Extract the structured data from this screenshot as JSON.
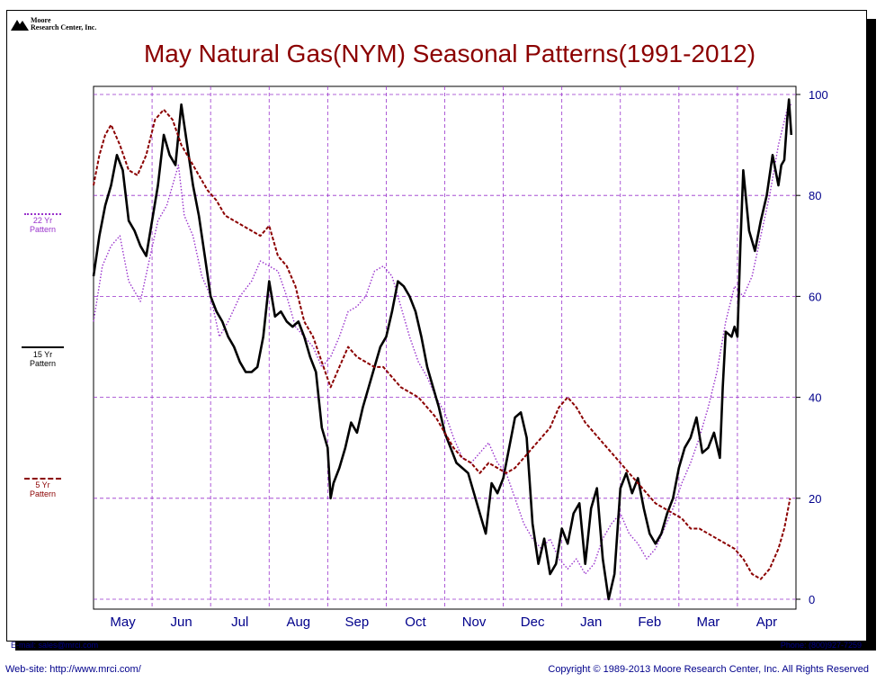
{
  "logo": {
    "line1": "Moore",
    "line2": "Research Center, Inc."
  },
  "title": "May Natural Gas(NYM) Seasonal Patterns(1991-2012)",
  "legend": {
    "p22": {
      "years": "22 Yr",
      "word": "Pattern",
      "color": "#9932cc"
    },
    "p15": {
      "years": "15 Yr",
      "word": "Pattern",
      "color": "#000000"
    },
    "p5": {
      "years": "5 Yr",
      "word": "Pattern",
      "color": "#8b0000"
    }
  },
  "footer": {
    "email": "E-mail: sales@mrci.com",
    "phone": "Phone: (800)927-7259",
    "website": "Web-site: http://www.mrci.com/",
    "copyright": "Copyright © 1989-2013 Moore Research Center, Inc. All Rights Reserved"
  },
  "chart_data": {
    "type": "line",
    "title": "May Natural Gas(NYM) Seasonal Patterns(1991-2012)",
    "categories": [
      "May",
      "Jun",
      "Jul",
      "Aug",
      "Sep",
      "Oct",
      "Nov",
      "Dec",
      "Jan",
      "Feb",
      "Mar",
      "Apr"
    ],
    "ylim": [
      0,
      100
    ],
    "yticks": [
      "0",
      "20",
      "40",
      "60",
      "80",
      "100"
    ],
    "grid": true,
    "colors": {
      "axis_text": "#00008b",
      "grid": "#9932cc"
    },
    "series": [
      {
        "name": "22 Yr Pattern",
        "color": "#9932cc",
        "style": "dotted",
        "values": [
          [
            0.0,
            55
          ],
          [
            0.15,
            66
          ],
          [
            0.3,
            70
          ],
          [
            0.45,
            72
          ],
          [
            0.6,
            63
          ],
          [
            0.8,
            59
          ],
          [
            0.95,
            67
          ],
          [
            1.1,
            75
          ],
          [
            1.25,
            78
          ],
          [
            1.45,
            86
          ],
          [
            1.55,
            76
          ],
          [
            1.7,
            72
          ],
          [
            1.85,
            64
          ],
          [
            2.0,
            60
          ],
          [
            2.15,
            52
          ],
          [
            2.3,
            55
          ],
          [
            2.5,
            60
          ],
          [
            2.7,
            63
          ],
          [
            2.85,
            67
          ],
          [
            3.0,
            66
          ],
          [
            3.15,
            65
          ],
          [
            3.3,
            60
          ],
          [
            3.45,
            54
          ],
          [
            3.6,
            52
          ],
          [
            3.75,
            50
          ],
          [
            3.9,
            46
          ],
          [
            4.05,
            48
          ],
          [
            4.2,
            52
          ],
          [
            4.35,
            57
          ],
          [
            4.5,
            58
          ],
          [
            4.65,
            60
          ],
          [
            4.8,
            65
          ],
          [
            4.95,
            66
          ],
          [
            5.1,
            64
          ],
          [
            5.25,
            58
          ],
          [
            5.4,
            52
          ],
          [
            5.55,
            47
          ],
          [
            5.7,
            44
          ],
          [
            5.85,
            40
          ],
          [
            6.0,
            37
          ],
          [
            6.15,
            32
          ],
          [
            6.3,
            28
          ],
          [
            6.45,
            27
          ],
          [
            6.6,
            29
          ],
          [
            6.75,
            31
          ],
          [
            6.9,
            27
          ],
          [
            7.05,
            25
          ],
          [
            7.2,
            20
          ],
          [
            7.35,
            15
          ],
          [
            7.5,
            12
          ],
          [
            7.65,
            10
          ],
          [
            7.8,
            12
          ],
          [
            7.95,
            8
          ],
          [
            8.1,
            6
          ],
          [
            8.25,
            8
          ],
          [
            8.4,
            5
          ],
          [
            8.55,
            7
          ],
          [
            8.7,
            12
          ],
          [
            8.85,
            15
          ],
          [
            9.0,
            17
          ],
          [
            9.15,
            13
          ],
          [
            9.3,
            11
          ],
          [
            9.45,
            8
          ],
          [
            9.6,
            10
          ],
          [
            9.75,
            14
          ],
          [
            9.9,
            18
          ],
          [
            10.05,
            23
          ],
          [
            10.2,
            27
          ],
          [
            10.35,
            32
          ],
          [
            10.5,
            38
          ],
          [
            10.65,
            45
          ],
          [
            10.8,
            55
          ],
          [
            10.95,
            62
          ],
          [
            11.1,
            60
          ],
          [
            11.25,
            64
          ],
          [
            11.4,
            72
          ],
          [
            11.55,
            80
          ],
          [
            11.7,
            90
          ],
          [
            11.85,
            97
          ],
          [
            11.92,
            98
          ]
        ]
      },
      {
        "name": "15 Yr Pattern",
        "color": "#000000",
        "style": "solid",
        "values": [
          [
            0.0,
            64
          ],
          [
            0.1,
            72
          ],
          [
            0.2,
            78
          ],
          [
            0.3,
            82
          ],
          [
            0.4,
            88
          ],
          [
            0.5,
            85
          ],
          [
            0.6,
            75
          ],
          [
            0.7,
            73
          ],
          [
            0.8,
            70
          ],
          [
            0.9,
            68
          ],
          [
            1.0,
            75
          ],
          [
            1.1,
            82
          ],
          [
            1.2,
            92
          ],
          [
            1.3,
            88
          ],
          [
            1.4,
            86
          ],
          [
            1.5,
            98
          ],
          [
            1.6,
            90
          ],
          [
            1.7,
            82
          ],
          [
            1.8,
            76
          ],
          [
            1.9,
            68
          ],
          [
            2.0,
            60
          ],
          [
            2.1,
            57
          ],
          [
            2.2,
            55
          ],
          [
            2.3,
            52
          ],
          [
            2.4,
            50
          ],
          [
            2.5,
            47
          ],
          [
            2.6,
            45
          ],
          [
            2.7,
            45
          ],
          [
            2.8,
            46
          ],
          [
            2.9,
            52
          ],
          [
            3.0,
            63
          ],
          [
            3.1,
            56
          ],
          [
            3.2,
            57
          ],
          [
            3.3,
            55
          ],
          [
            3.4,
            54
          ],
          [
            3.5,
            55
          ],
          [
            3.6,
            52
          ],
          [
            3.7,
            48
          ],
          [
            3.8,
            45
          ],
          [
            3.9,
            34
          ],
          [
            4.0,
            30
          ],
          [
            4.05,
            20
          ],
          [
            4.1,
            23
          ],
          [
            4.2,
            26
          ],
          [
            4.3,
            30
          ],
          [
            4.4,
            35
          ],
          [
            4.5,
            33
          ],
          [
            4.6,
            38
          ],
          [
            4.7,
            42
          ],
          [
            4.8,
            46
          ],
          [
            4.9,
            50
          ],
          [
            5.0,
            52
          ],
          [
            5.1,
            57
          ],
          [
            5.2,
            63
          ],
          [
            5.3,
            62
          ],
          [
            5.4,
            60
          ],
          [
            5.5,
            57
          ],
          [
            5.6,
            52
          ],
          [
            5.7,
            46
          ],
          [
            5.8,
            42
          ],
          [
            5.9,
            38
          ],
          [
            6.0,
            33
          ],
          [
            6.1,
            30
          ],
          [
            6.2,
            27
          ],
          [
            6.3,
            26
          ],
          [
            6.4,
            25
          ],
          [
            6.5,
            21
          ],
          [
            6.6,
            17
          ],
          [
            6.7,
            13
          ],
          [
            6.8,
            23
          ],
          [
            6.9,
            21
          ],
          [
            7.0,
            24
          ],
          [
            7.1,
            30
          ],
          [
            7.2,
            36
          ],
          [
            7.3,
            37
          ],
          [
            7.4,
            32
          ],
          [
            7.5,
            15
          ],
          [
            7.6,
            7
          ],
          [
            7.7,
            12
          ],
          [
            7.8,
            5
          ],
          [
            7.9,
            7
          ],
          [
            8.0,
            14
          ],
          [
            8.1,
            11
          ],
          [
            8.2,
            17
          ],
          [
            8.3,
            19
          ],
          [
            8.4,
            7
          ],
          [
            8.5,
            18
          ],
          [
            8.6,
            22
          ],
          [
            8.7,
            8
          ],
          [
            8.8,
            0
          ],
          [
            8.9,
            5
          ],
          [
            9.0,
            22
          ],
          [
            9.1,
            25
          ],
          [
            9.2,
            21
          ],
          [
            9.3,
            24
          ],
          [
            9.4,
            18
          ],
          [
            9.5,
            13
          ],
          [
            9.6,
            11
          ],
          [
            9.7,
            13
          ],
          [
            9.8,
            17
          ],
          [
            9.9,
            20
          ],
          [
            10.0,
            26
          ],
          [
            10.1,
            30
          ],
          [
            10.2,
            32
          ],
          [
            10.3,
            36
          ],
          [
            10.4,
            29
          ],
          [
            10.5,
            30
          ],
          [
            10.6,
            33
          ],
          [
            10.7,
            28
          ],
          [
            10.75,
            42
          ],
          [
            10.8,
            53
          ],
          [
            10.9,
            52
          ],
          [
            10.95,
            54
          ],
          [
            11.0,
            52
          ],
          [
            11.05,
            70
          ],
          [
            11.1,
            85
          ],
          [
            11.2,
            73
          ],
          [
            11.3,
            69
          ],
          [
            11.4,
            75
          ],
          [
            11.5,
            80
          ],
          [
            11.6,
            88
          ],
          [
            11.7,
            82
          ],
          [
            11.75,
            86
          ],
          [
            11.8,
            87
          ],
          [
            11.85,
            95
          ],
          [
            11.88,
            99
          ],
          [
            11.92,
            92
          ]
        ]
      },
      {
        "name": "5 Yr Pattern",
        "color": "#8b0000",
        "style": "dashed",
        "values": [
          [
            0.0,
            82
          ],
          [
            0.1,
            88
          ],
          [
            0.2,
            92
          ],
          [
            0.3,
            94
          ],
          [
            0.45,
            90
          ],
          [
            0.6,
            85
          ],
          [
            0.75,
            84
          ],
          [
            0.9,
            88
          ],
          [
            1.05,
            95
          ],
          [
            1.2,
            97
          ],
          [
            1.35,
            95
          ],
          [
            1.5,
            90
          ],
          [
            1.65,
            87
          ],
          [
            1.8,
            84
          ],
          [
            1.95,
            81
          ],
          [
            2.1,
            79
          ],
          [
            2.25,
            76
          ],
          [
            2.4,
            75
          ],
          [
            2.55,
            74
          ],
          [
            2.7,
            73
          ],
          [
            2.85,
            72
          ],
          [
            3.0,
            74
          ],
          [
            3.15,
            68
          ],
          [
            3.3,
            66
          ],
          [
            3.45,
            62
          ],
          [
            3.6,
            55
          ],
          [
            3.75,
            52
          ],
          [
            3.9,
            47
          ],
          [
            4.05,
            42
          ],
          [
            4.2,
            46
          ],
          [
            4.35,
            50
          ],
          [
            4.5,
            48
          ],
          [
            4.65,
            47
          ],
          [
            4.8,
            46
          ],
          [
            4.95,
            46
          ],
          [
            5.1,
            44
          ],
          [
            5.25,
            42
          ],
          [
            5.4,
            41
          ],
          [
            5.55,
            40
          ],
          [
            5.7,
            38
          ],
          [
            5.85,
            36
          ],
          [
            6.0,
            33
          ],
          [
            6.15,
            30
          ],
          [
            6.3,
            28
          ],
          [
            6.45,
            27
          ],
          [
            6.6,
            25
          ],
          [
            6.75,
            27
          ],
          [
            6.9,
            26
          ],
          [
            7.05,
            25
          ],
          [
            7.2,
            26
          ],
          [
            7.35,
            28
          ],
          [
            7.5,
            30
          ],
          [
            7.65,
            32
          ],
          [
            7.8,
            34
          ],
          [
            7.95,
            38
          ],
          [
            8.1,
            40
          ],
          [
            8.25,
            38
          ],
          [
            8.4,
            35
          ],
          [
            8.55,
            33
          ],
          [
            8.7,
            31
          ],
          [
            8.85,
            29
          ],
          [
            9.0,
            27
          ],
          [
            9.15,
            25
          ],
          [
            9.3,
            23
          ],
          [
            9.45,
            21
          ],
          [
            9.6,
            19
          ],
          [
            9.75,
            18
          ],
          [
            9.9,
            17
          ],
          [
            10.05,
            16
          ],
          [
            10.2,
            14
          ],
          [
            10.35,
            14
          ],
          [
            10.5,
            13
          ],
          [
            10.65,
            12
          ],
          [
            10.8,
            11
          ],
          [
            10.95,
            10
          ],
          [
            11.1,
            8
          ],
          [
            11.25,
            5
          ],
          [
            11.4,
            4
          ],
          [
            11.55,
            6
          ],
          [
            11.7,
            10
          ],
          [
            11.8,
            14
          ],
          [
            11.9,
            20
          ]
        ]
      }
    ]
  }
}
